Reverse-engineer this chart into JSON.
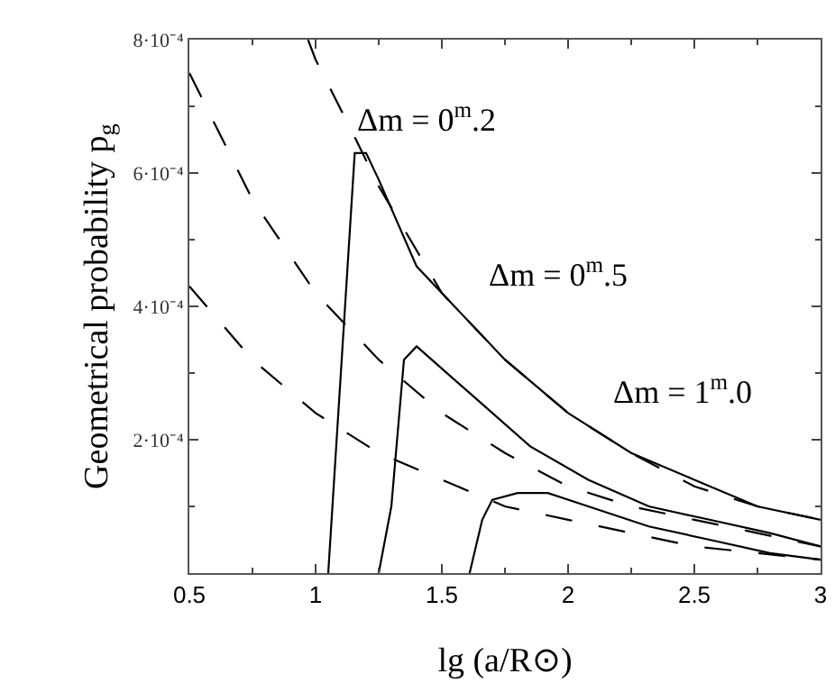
{
  "chart_data": {
    "type": "line",
    "xlabel": "lg (a/R⊙)",
    "ylabel": "Geometrical probability p$_{g}$",
    "xlim": [
      0.5,
      3
    ],
    "xticks": [
      0.5,
      1,
      1.5,
      2,
      2.5,
      3
    ],
    "ylim": [
      0,
      0.0008
    ],
    "yticks": [
      {
        "value": 0.0002,
        "label": "2·10⁻⁴"
      },
      {
        "value": 0.0004,
        "label": "4·10⁻⁴"
      },
      {
        "value": 0.0006,
        "label": "6·10⁻⁴"
      },
      {
        "value": 0.0008,
        "label": "8·10⁻⁴"
      }
    ],
    "marker": "none",
    "series": [
      {
        "color": "#000000",
        "line_style": "solid",
        "x": [
          1.05,
          1.155,
          1.2,
          1.25,
          1.4,
          1.5,
          1.75,
          2,
          2.25,
          2.5,
          2.75,
          3
        ],
        "values": [
          0,
          0.00063,
          0.00063,
          0.00059,
          0.00046,
          0.00042,
          0.00032,
          0.00024,
          0.00018,
          0.00014,
          0.0001,
          8e-05
        ]
      },
      {
        "color": "#000000",
        "line_style": "solid",
        "x": [
          1.25,
          1.3,
          1.35,
          1.4,
          1.61,
          1.85,
          2.08,
          2.32,
          2.56,
          2.8,
          3
        ],
        "values": [
          0,
          0.0001,
          0.00032,
          0.00034,
          0.00027,
          0.00019,
          0.00014,
          0.0001,
          8e-05,
          6e-05,
          4e-05
        ]
      },
      {
        "color": "#000000",
        "line_style": "solid",
        "x": [
          1.61,
          1.66,
          1.7,
          1.8,
          1.92,
          2.08,
          2.32,
          2.56,
          2.8,
          3
        ],
        "values": [
          0,
          8e-05,
          0.00011,
          0.00012,
          0.00012,
          0.0001,
          7e-05,
          5e-05,
          3e-05,
          2e-05
        ]
      },
      {
        "color": "#000000",
        "line_style": "dashed",
        "x": [
          0.97,
          1.0,
          1.16,
          1.25,
          1.5,
          1.75,
          2,
          2.25,
          2.5,
          2.75,
          3
        ],
        "values": [
          0.0008,
          0.00077,
          0.00065,
          0.00058,
          0.00042,
          0.00032,
          0.00024,
          0.00018,
          0.00013,
          0.0001,
          8e-05
        ]
      },
      {
        "color": "#000000",
        "line_style": "dashed",
        "x": [
          0.5,
          0.75,
          1,
          1.25,
          1.5,
          1.75,
          2,
          2.25,
          2.5,
          2.75,
          3
        ],
        "values": [
          0.00075,
          0.00056,
          0.00042,
          0.00032,
          0.00024,
          0.00018,
          0.00013,
          0.0001,
          8e-05,
          6e-05,
          4e-05
        ]
      },
      {
        "color": "#000000",
        "line_style": "dashed",
        "x": [
          0.5,
          0.75,
          1,
          1.25,
          1.5,
          1.75,
          2,
          2.25,
          2.5,
          2.75,
          3
        ],
        "values": [
          0.00043,
          0.00032,
          0.00024,
          0.00018,
          0.00014,
          0.0001,
          8e-05,
          6e-05,
          4e-05,
          3e-05,
          2e-05
        ]
      }
    ],
    "annotations": [
      "Δm = 0$^{m}$.2",
      "Δm = 0$^{m}$.5",
      "Δm = 1$^{m}$.0"
    ]
  }
}
